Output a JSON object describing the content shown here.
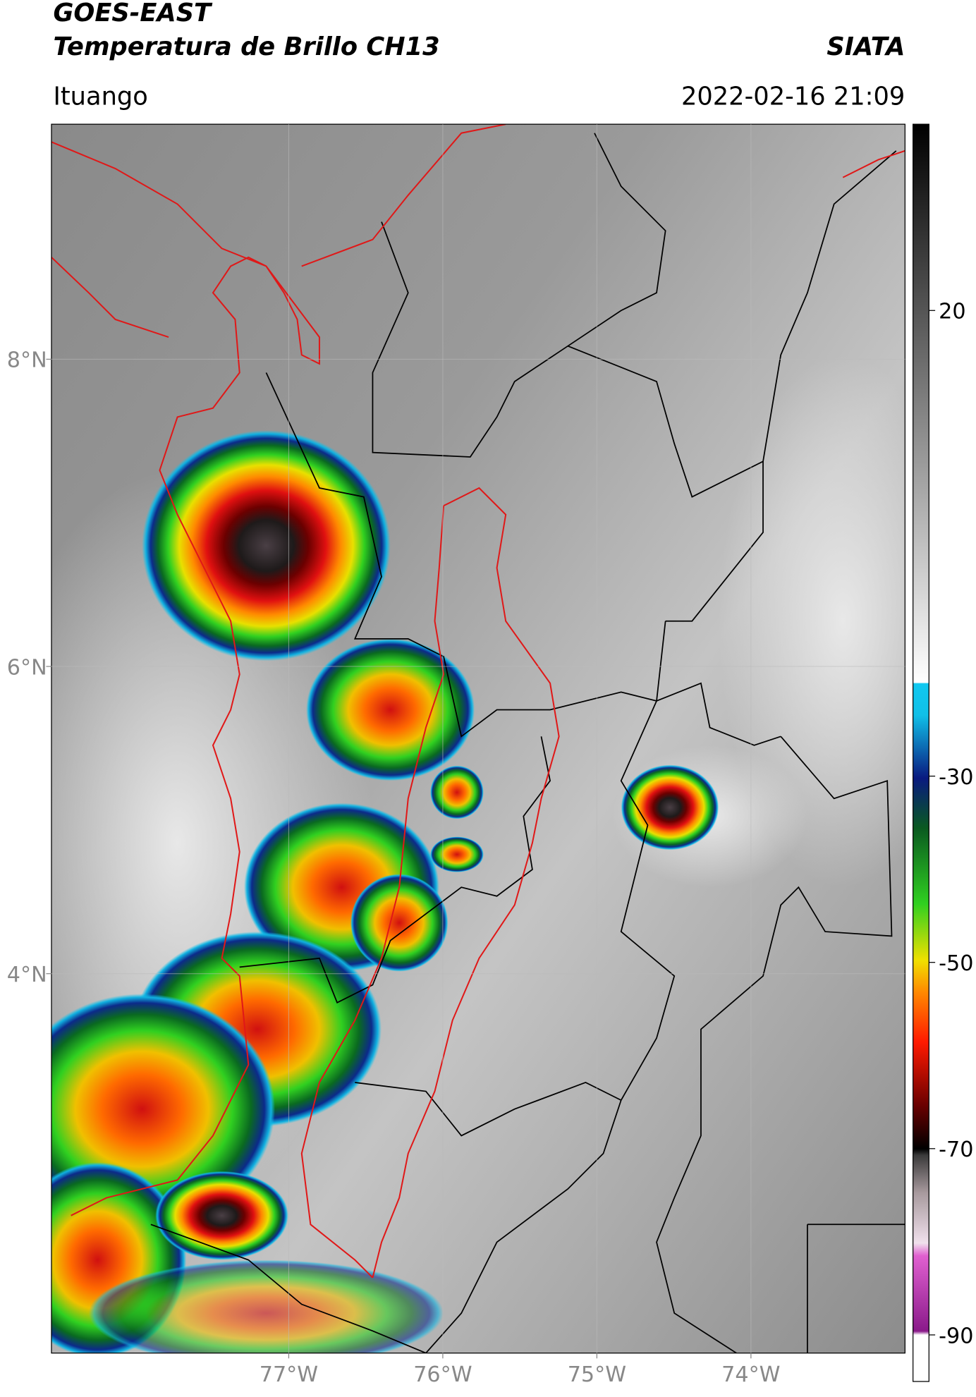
{
  "header": {
    "title": "GOES-EAST",
    "subtitle": "Temperatura de Brillo CH13",
    "source": "SIATA",
    "location": "Ituango",
    "datetime": "2022-02-16 21:09"
  },
  "map": {
    "lon_range": [
      -78.54,
      -73.0
    ],
    "lat_range": [
      1.53,
      9.53
    ],
    "lon_ticks": [
      {
        "value": -77,
        "label": "77°W"
      },
      {
        "value": -76,
        "label": "76°W"
      },
      {
        "value": -75,
        "label": "75°W"
      },
      {
        "value": -74,
        "label": "74°W"
      }
    ],
    "lat_ticks": [
      {
        "value": 8,
        "label": "8°N"
      },
      {
        "value": 6,
        "label": "6°N"
      },
      {
        "value": 4,
        "label": "4°N"
      }
    ]
  },
  "colorbar": {
    "range": [
      -95,
      40
    ],
    "ticks": [
      20,
      -30,
      -50,
      -70,
      -90
    ]
  }
}
